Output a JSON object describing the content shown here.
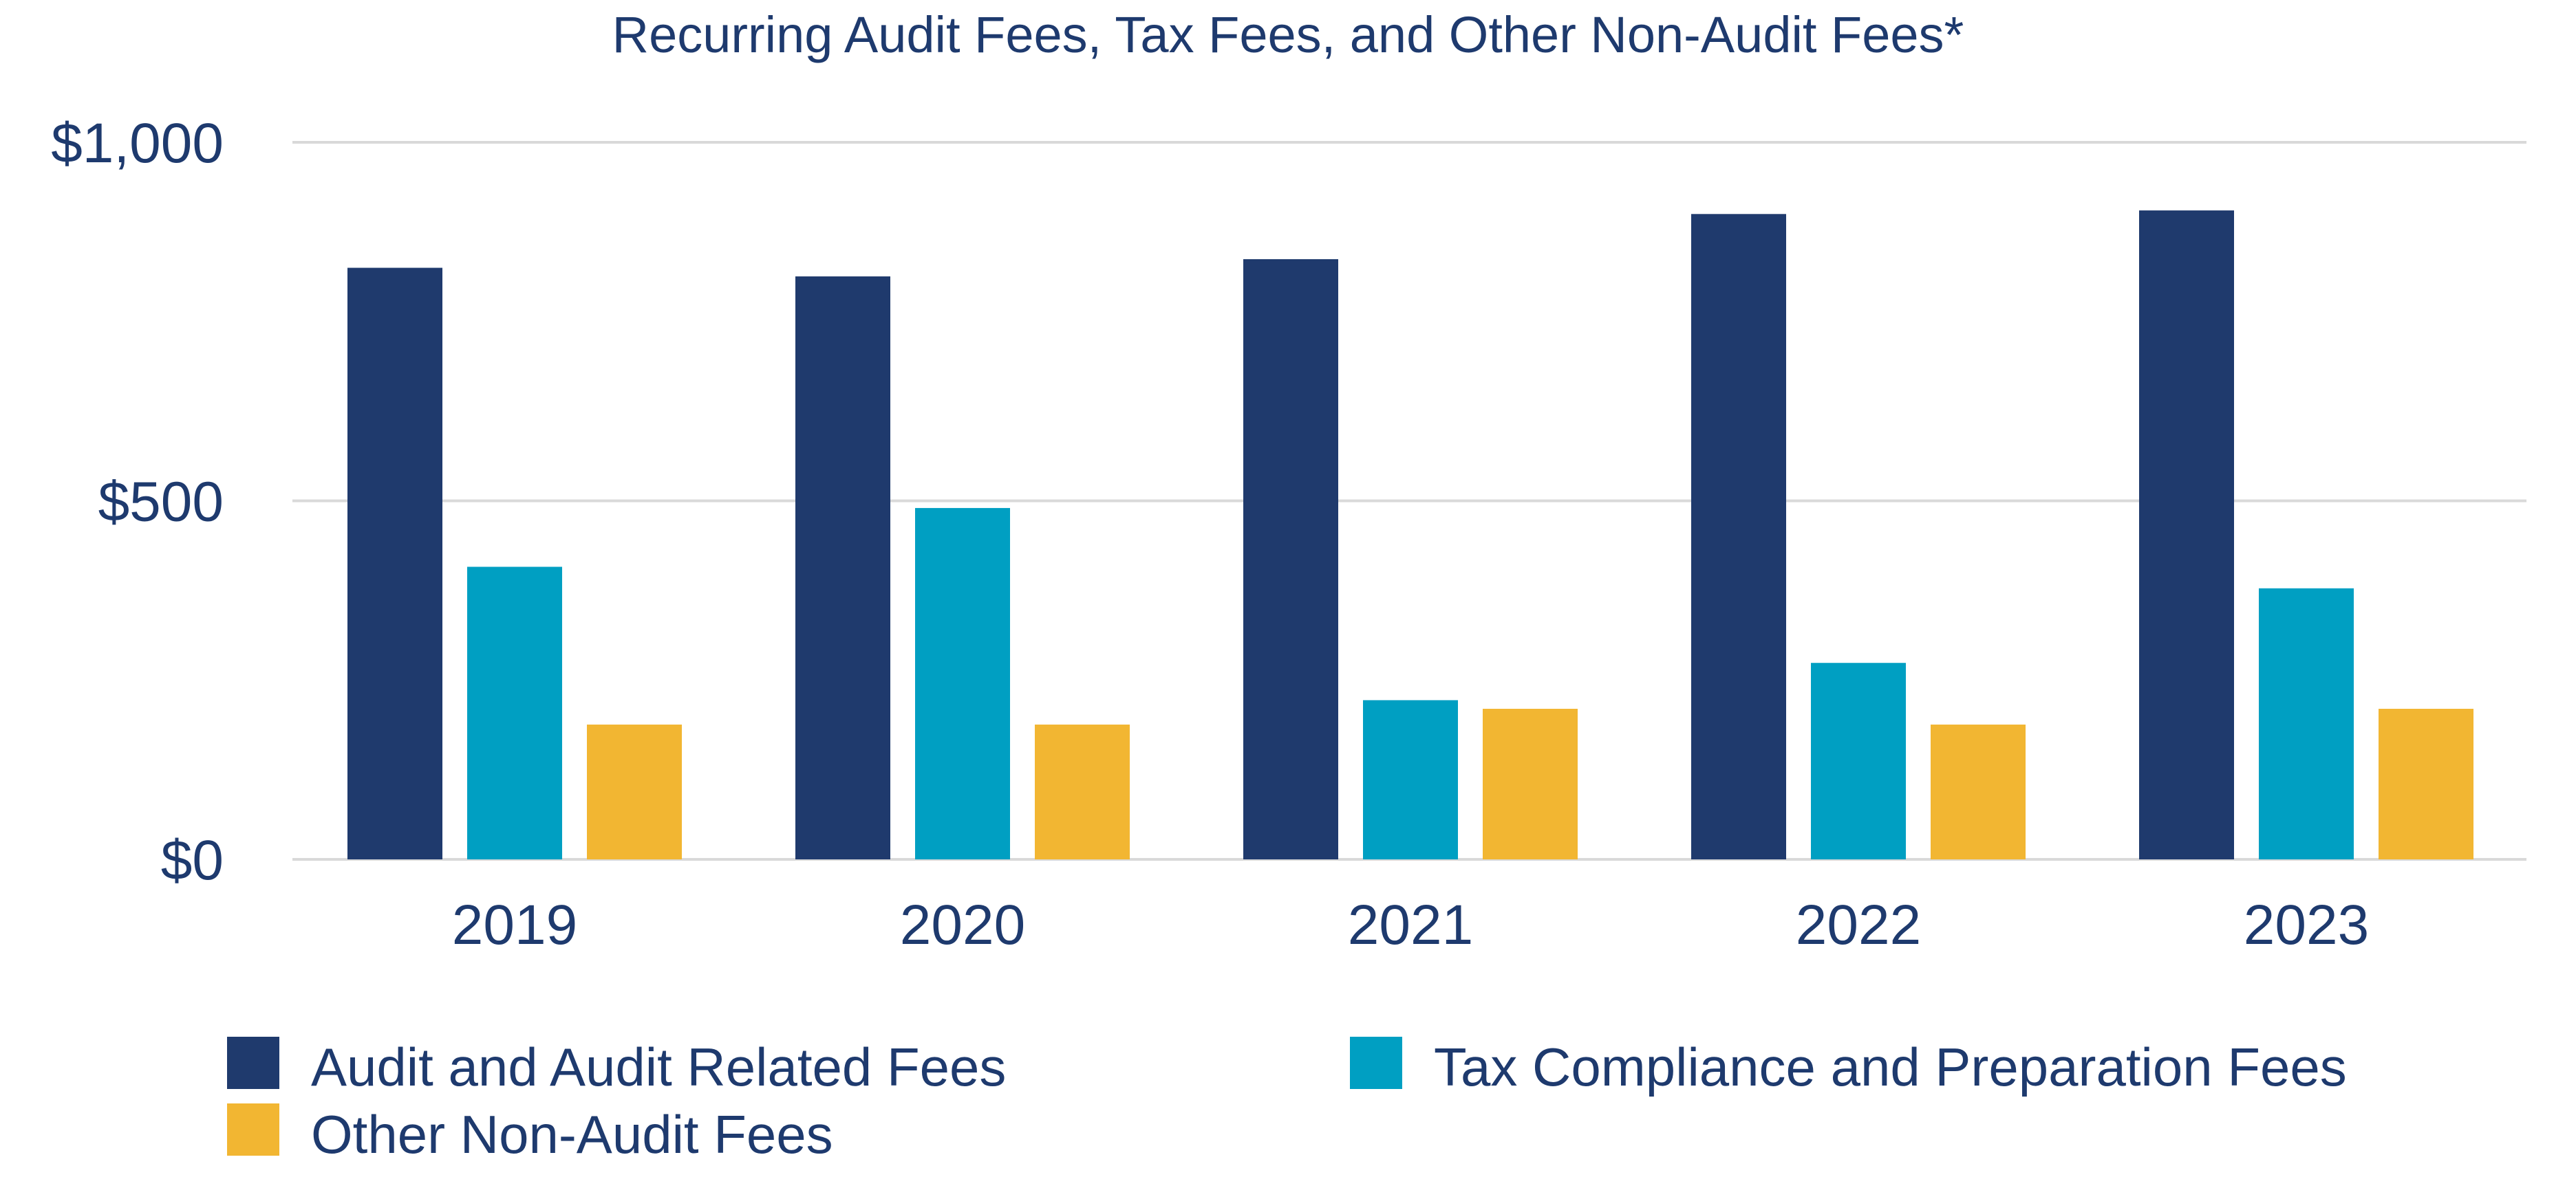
{
  "chart_data": {
    "type": "bar",
    "title": "Recurring Audit Fees, Tax Fees, and Other Non-Audit Fees*",
    "xlabel": "",
    "ylabel": "",
    "ylim": [
      0,
      1000
    ],
    "y_ticks": [
      0,
      500,
      1000
    ],
    "y_tick_labels": [
      "$0",
      "$500",
      "$1,000"
    ],
    "categories": [
      "2019",
      "2020",
      "2021",
      "2022",
      "2023"
    ],
    "grid": true,
    "legend_position": "bottom",
    "series": [
      {
        "name": "Audit and Audit Related Fees",
        "color": "#1f3a6d",
        "values": [
          825,
          813,
          837,
          900,
          905
        ]
      },
      {
        "name": "Tax Compliance and Preparation Fees",
        "color": "#009fc2",
        "values": [
          408,
          490,
          222,
          274,
          378
        ]
      },
      {
        "name": "Other Non-Audit Fees",
        "color": "#f2b632",
        "values": [
          188,
          188,
          210,
          188,
          210
        ]
      }
    ]
  }
}
